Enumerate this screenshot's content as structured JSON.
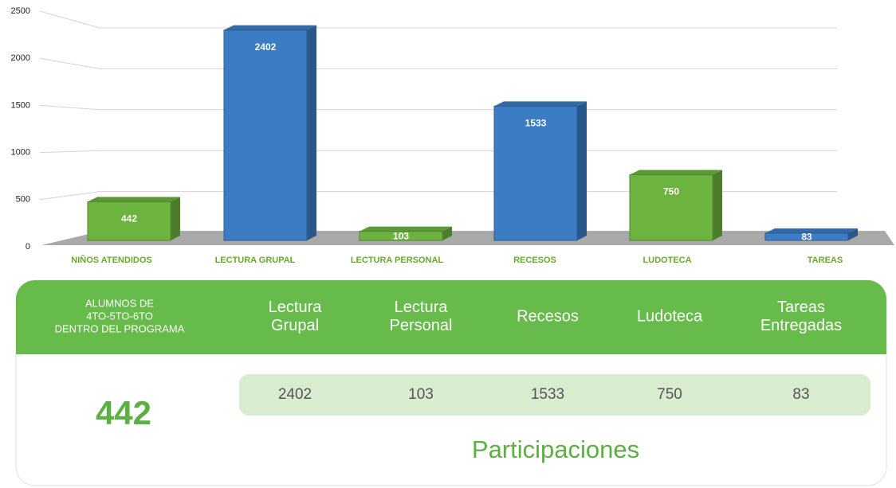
{
  "chart_data": {
    "type": "bar3d",
    "categories": [
      "NIÑOS ATENDIDOS",
      "LECTURA GRUPAL",
      "LECTURA PERSONAL",
      "RECESOS",
      "LUDOTECA",
      "TAREAS"
    ],
    "values": [
      442,
      2402,
      103,
      1533,
      750,
      83
    ],
    "colors": [
      "#6db33f",
      "#3b7cc4",
      "#6db33f",
      "#3b7cc4",
      "#6db33f",
      "#3b7cc4"
    ],
    "ylim": [
      0,
      2500
    ],
    "yticks": [
      0,
      500,
      1000,
      1500,
      2000,
      2500
    ],
    "grid": true
  },
  "panel": {
    "headers": [
      [
        "ALUMNOS DE",
        "4TO-5TO-6TO",
        "DENTRO DEL PROGRAMA"
      ],
      [
        "Lectura",
        "Grupal"
      ],
      [
        "Lectura",
        "Personal"
      ],
      [
        "Recesos"
      ],
      [
        "Ludoteca"
      ],
      [
        "Tareas",
        "Entregadas"
      ]
    ],
    "total": 442,
    "values": [
      2402,
      103,
      1533,
      750,
      83
    ],
    "footer": "Participaciones"
  }
}
